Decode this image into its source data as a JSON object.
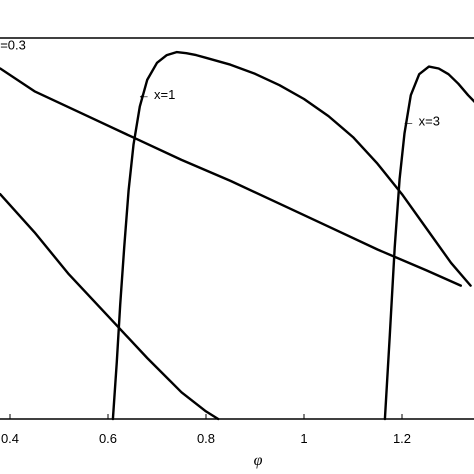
{
  "chart_data": {
    "type": "line",
    "title": "",
    "xlabel": "φ",
    "ylabel": "",
    "xlim": [
      0.38,
      1.35
    ],
    "ylim": [
      0,
      1
    ],
    "x_ticks": [
      {
        "value": 0.4,
        "label": "0.4"
      },
      {
        "value": 0.6,
        "label": "0.6"
      },
      {
        "value": 0.8,
        "label": "0.8"
      },
      {
        "value": 1.0,
        "label": "1"
      },
      {
        "value": 1.2,
        "label": "1.2"
      }
    ],
    "grid": false,
    "series": [
      {
        "x": [
          0.38,
          0.45,
          0.55,
          0.65,
          0.75,
          0.85,
          0.95,
          1.05,
          1.15,
          1.25,
          1.32
        ],
        "y": [
          0.92,
          0.86,
          0.8,
          0.74,
          0.68,
          0.625,
          0.565,
          0.505,
          0.445,
          0.39,
          0.35
        ]
      },
      {
        "x": [
          0.38,
          0.45,
          0.52,
          0.6,
          0.68,
          0.75,
          0.8,
          0.825
        ],
        "y": [
          0.59,
          0.49,
          0.38,
          0.27,
          0.16,
          0.07,
          0.02,
          0.0
        ]
      },
      {
        "x": [
          0.61,
          0.618,
          0.625,
          0.633,
          0.642,
          0.652,
          0.665,
          0.68,
          0.7,
          0.72,
          0.74,
          0.76,
          0.78,
          0.8,
          0.85,
          0.9,
          0.95,
          1.0,
          1.05,
          1.1,
          1.15,
          1.2,
          1.25,
          1.3,
          1.34
        ],
        "y": [
          0.0,
          0.15,
          0.3,
          0.45,
          0.6,
          0.72,
          0.82,
          0.89,
          0.935,
          0.955,
          0.963,
          0.96,
          0.955,
          0.948,
          0.93,
          0.906,
          0.876,
          0.84,
          0.795,
          0.74,
          0.67,
          0.59,
          0.5,
          0.41,
          0.35
        ]
      },
      {
        "x": [
          1.165,
          1.175,
          1.185,
          1.195,
          1.205,
          1.218,
          1.235,
          1.255,
          1.275,
          1.295,
          1.315,
          1.335,
          1.35
        ],
        "y": [
          0.0,
          0.22,
          0.45,
          0.63,
          0.75,
          0.85,
          0.905,
          0.925,
          0.92,
          0.905,
          0.88,
          0.85,
          0.83
        ]
      }
    ],
    "annotations": [
      {
        "text": "=0.3",
        "x": 0.38,
        "y": 0.97
      },
      {
        "text": "← x=1",
        "x": 0.66,
        "y": 0.84
      },
      {
        "text": "← x=3",
        "x": 1.2,
        "y": 0.77
      }
    ]
  }
}
